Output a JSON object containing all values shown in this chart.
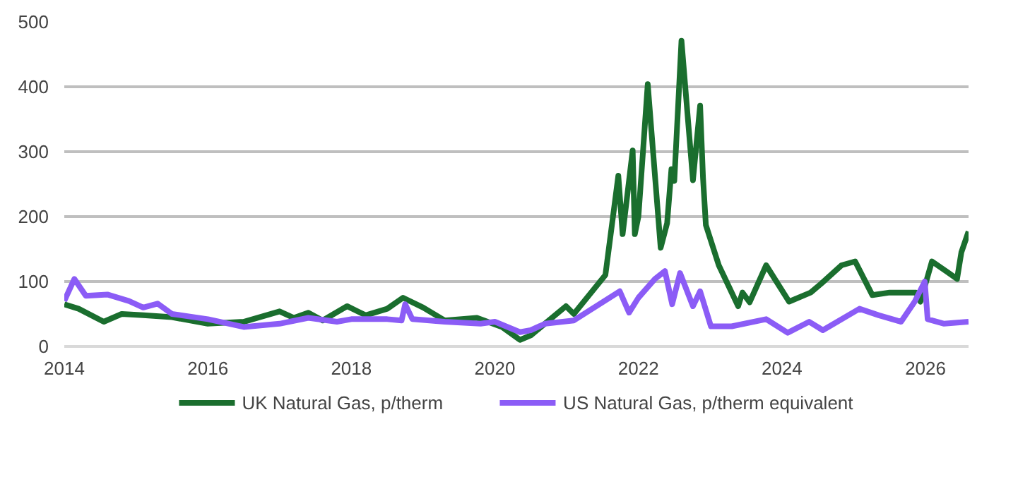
{
  "chart_data": {
    "type": "line",
    "xlim": [
      2014,
      2026.6
    ],
    "xticks": [
      2014,
      2016,
      2018,
      2020,
      2022,
      2024,
      2026
    ],
    "ylim": [
      0,
      500
    ],
    "yticks": [
      0,
      100,
      200,
      300,
      400,
      500
    ],
    "grid": "y",
    "legend": "bottom",
    "marker": "none",
    "line_style": "solid",
    "series": [
      {
        "name": "UK Natural Gas, p/therm",
        "color": "#1a6e2e",
        "x": [
          2014.0,
          2014.2,
          2014.55,
          2014.8,
          2015.1,
          2015.5,
          2016.0,
          2016.5,
          2017.0,
          2017.2,
          2017.4,
          2017.6,
          2017.94,
          2018.2,
          2018.5,
          2018.72,
          2019.0,
          2019.3,
          2019.75,
          2020.1,
          2020.35,
          2020.5,
          2020.99,
          2021.1,
          2021.54,
          2021.72,
          2021.78,
          2021.92,
          2021.95,
          2022.0,
          2022.13,
          2022.31,
          2022.4,
          2022.46,
          2022.5,
          2022.6,
          2022.76,
          2022.86,
          2022.9,
          2022.94,
          2023.12,
          2023.39,
          2023.45,
          2023.55,
          2023.78,
          2024.1,
          2024.4,
          2024.55,
          2024.83,
          2025.02,
          2025.26,
          2025.5,
          2025.87,
          2025.93,
          2026.09,
          2026.3,
          2026.44,
          2026.5,
          2026.6
        ],
        "values": [
          65,
          58,
          38,
          50,
          48,
          45,
          35,
          38,
          54,
          44,
          52,
          40,
          62,
          48,
          58,
          75,
          60,
          40,
          44,
          30,
          10,
          17,
          62,
          50,
          110,
          263,
          173,
          302,
          173,
          200,
          404,
          152,
          190,
          273,
          255,
          471,
          256,
          371,
          260,
          187,
          125,
          62,
          83,
          68,
          125,
          69,
          83,
          97,
          125,
          131,
          79,
          83,
          83,
          69,
          131,
          115,
          104,
          145,
          177
        ]
      },
      {
        "name": "US Natural Gas, p/therm equivalent",
        "color": "#8b5cf6",
        "x": [
          2014.0,
          2014.14,
          2014.3,
          2014.6,
          2014.9,
          2015.1,
          2015.3,
          2015.5,
          2016.0,
          2016.5,
          2017.0,
          2017.4,
          2017.8,
          2018.0,
          2018.5,
          2018.7,
          2018.75,
          2018.85,
          2019.3,
          2019.8,
          2020.0,
          2020.35,
          2020.5,
          2020.7,
          2021.1,
          2021.74,
          2021.87,
          2022.0,
          2022.23,
          2022.37,
          2022.47,
          2022.58,
          2022.76,
          2022.86,
          2023.01,
          2023.3,
          2023.78,
          2024.08,
          2024.38,
          2024.57,
          2025.08,
          2025.35,
          2025.66,
          2025.85,
          2025.99,
          2026.03,
          2026.26,
          2026.6
        ],
        "values": [
          70,
          104,
          78,
          80,
          70,
          60,
          66,
          50,
          42,
          30,
          35,
          44,
          38,
          42,
          42,
          40,
          65,
          42,
          38,
          35,
          38,
          22,
          25,
          35,
          40,
          85,
          52,
          75,
          104,
          116,
          65,
          113,
          62,
          85,
          31,
          31,
          42,
          21,
          38,
          25,
          58,
          48,
          38,
          69,
          100,
          42,
          35,
          38
        ]
      }
    ]
  }
}
